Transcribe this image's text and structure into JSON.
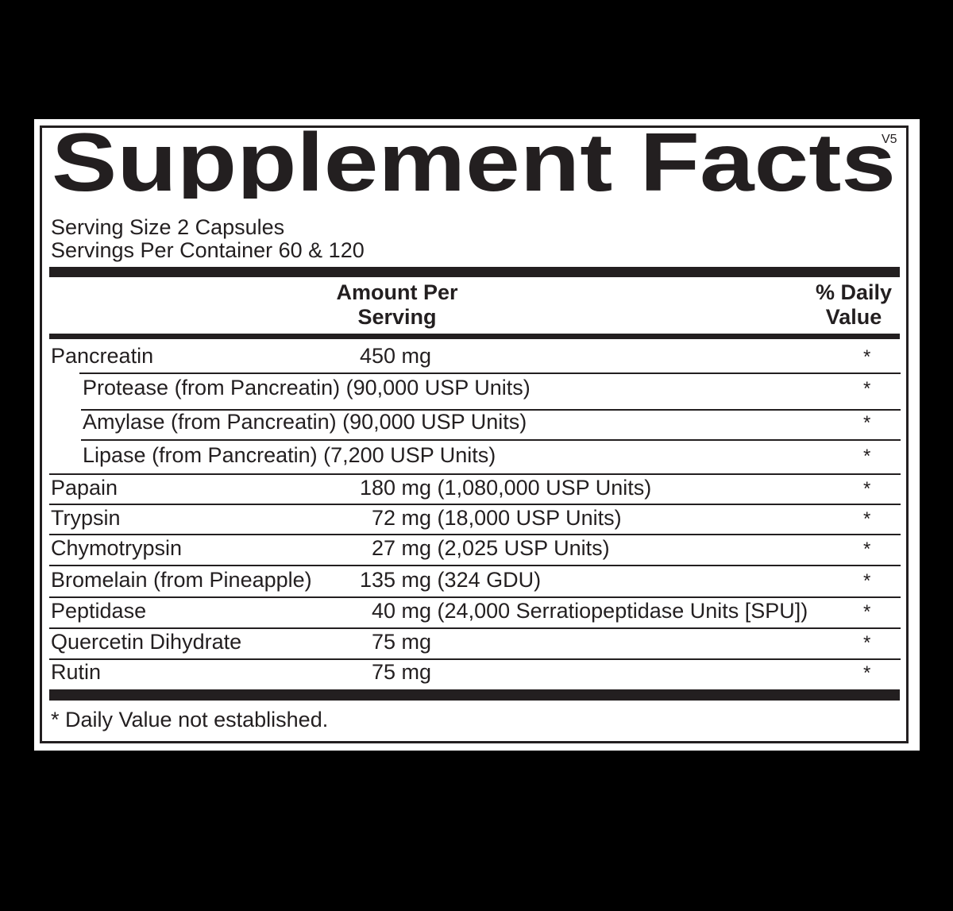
{
  "title": "Supplement Facts",
  "version": "V5",
  "serving_size": "Serving Size  2 Capsules",
  "servings_per_container": "Servings Per Container  60  & 120",
  "headers": {
    "amount": "Amount Per",
    "amount2": "Serving",
    "dv": "% Daily",
    "dv2": "Value"
  },
  "rows": [
    {
      "name": "Pancreatin",
      "amount": "450 mg",
      "dv": "*"
    },
    {
      "name": "Protease (from Pancreatin) (90,000 USP Units)",
      "amount": "",
      "dv": "*"
    },
    {
      "name": "Amylase (from Pancreatin) (90,000 USP Units)",
      "amount": "",
      "dv": "*"
    },
    {
      "name": "Lipase (from Pancreatin) (7,200 USP Units)",
      "amount": "",
      "dv": "*"
    },
    {
      "name": "Papain",
      "amount": "180 mg (1,080,000 USP Units)",
      "dv": "*"
    },
    {
      "name": "Trypsin",
      "amount": "72 mg (18,000 USP Units)",
      "dv": "*"
    },
    {
      "name": "Chymotrypsin",
      "amount": "27 mg (2,025 USP Units)",
      "dv": "*"
    },
    {
      "name": "Bromelain (from Pineapple)",
      "amount": "135 mg (324 GDU)",
      "dv": "*"
    },
    {
      "name": "Peptidase",
      "amount": "40 mg (24,000 Serratiopeptidase Units [SPU])",
      "dv": "*"
    },
    {
      "name": "Quercetin Dihydrate",
      "amount": "75 mg",
      "dv": "*"
    },
    {
      "name": "Rutin",
      "amount": "75 mg",
      "dv": "*"
    }
  ],
  "footnote": "* Daily Value not established."
}
